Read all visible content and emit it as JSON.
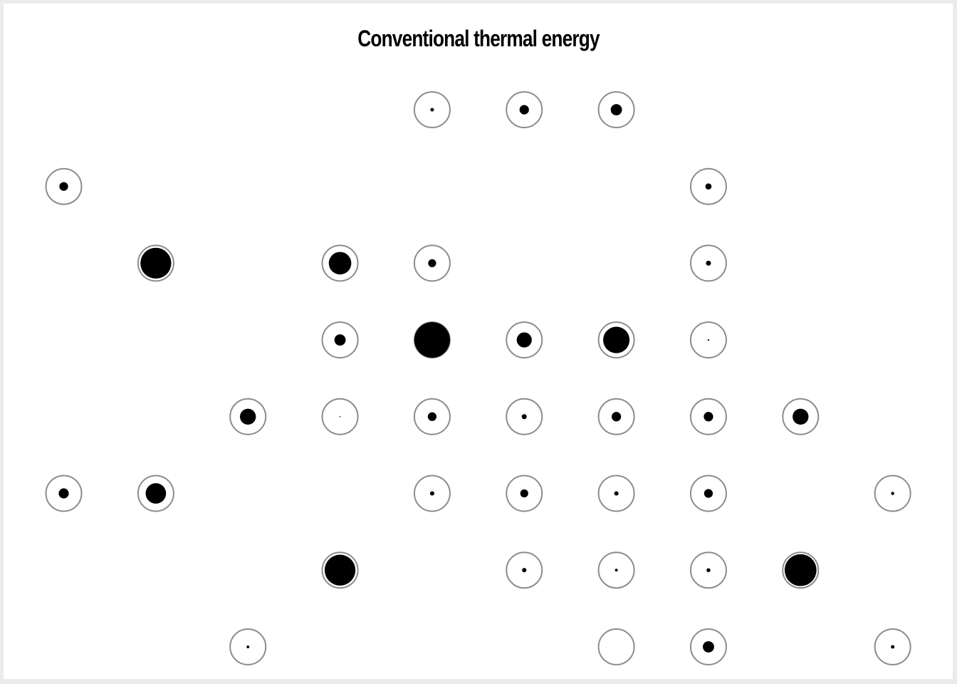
{
  "chart_data": {
    "type": "scatter",
    "title": "Conventional thermal energy",
    "encoding": "grid of cells; each cell shows an outer ring (full scale) and a filled inner dot whose area is proportional to the value (0 = empty ring, 1 = full)",
    "grid": {
      "columns": 10,
      "rows": 8
    },
    "cells": [
      {
        "col": 5,
        "row": 1,
        "value": 0.01
      },
      {
        "col": 6,
        "row": 1,
        "value": 0.07
      },
      {
        "col": 7,
        "row": 1,
        "value": 0.1
      },
      {
        "col": 1,
        "row": 2,
        "value": 0.06
      },
      {
        "col": 8,
        "row": 2,
        "value": 0.03
      },
      {
        "col": 2,
        "row": 3,
        "value": 0.75
      },
      {
        "col": 4,
        "row": 3,
        "value": 0.4
      },
      {
        "col": 5,
        "row": 3,
        "value": 0.05
      },
      {
        "col": 8,
        "row": 3,
        "value": 0.02
      },
      {
        "col": 4,
        "row": 4,
        "value": 0.1
      },
      {
        "col": 5,
        "row": 4,
        "value": 1.0
      },
      {
        "col": 6,
        "row": 4,
        "value": 0.18
      },
      {
        "col": 7,
        "row": 4,
        "value": 0.55
      },
      {
        "col": 8,
        "row": 4,
        "value": 0.002
      },
      {
        "col": 3,
        "row": 5,
        "value": 0.2
      },
      {
        "col": 4,
        "row": 5,
        "value": 0.001
      },
      {
        "col": 5,
        "row": 5,
        "value": 0.06
      },
      {
        "col": 6,
        "row": 5,
        "value": 0.02
      },
      {
        "col": 7,
        "row": 5,
        "value": 0.07
      },
      {
        "col": 8,
        "row": 5,
        "value": 0.07
      },
      {
        "col": 9,
        "row": 5,
        "value": 0.2
      },
      {
        "col": 1,
        "row": 6,
        "value": 0.08
      },
      {
        "col": 2,
        "row": 6,
        "value": 0.33
      },
      {
        "col": 5,
        "row": 6,
        "value": 0.015
      },
      {
        "col": 6,
        "row": 6,
        "value": 0.05
      },
      {
        "col": 7,
        "row": 6,
        "value": 0.015
      },
      {
        "col": 8,
        "row": 6,
        "value": 0.06
      },
      {
        "col": 10,
        "row": 6,
        "value": 0.008
      },
      {
        "col": 4,
        "row": 7,
        "value": 0.75
      },
      {
        "col": 6,
        "row": 7,
        "value": 0.015
      },
      {
        "col": 7,
        "row": 7,
        "value": 0.006
      },
      {
        "col": 8,
        "row": 7,
        "value": 0.012
      },
      {
        "col": 9,
        "row": 7,
        "value": 0.8
      },
      {
        "col": 3,
        "row": 8,
        "value": 0.006
      },
      {
        "col": 7,
        "row": 8,
        "value": 0
      },
      {
        "col": 8,
        "row": 8,
        "value": 0.1
      },
      {
        "col": 10,
        "row": 8,
        "value": 0.01
      }
    ],
    "grid_lines": false,
    "legend": "none"
  },
  "colors": {
    "ring": "#8c8c8c",
    "dot": "#000000",
    "background": "#ffffff",
    "border": "#ebebeb"
  }
}
